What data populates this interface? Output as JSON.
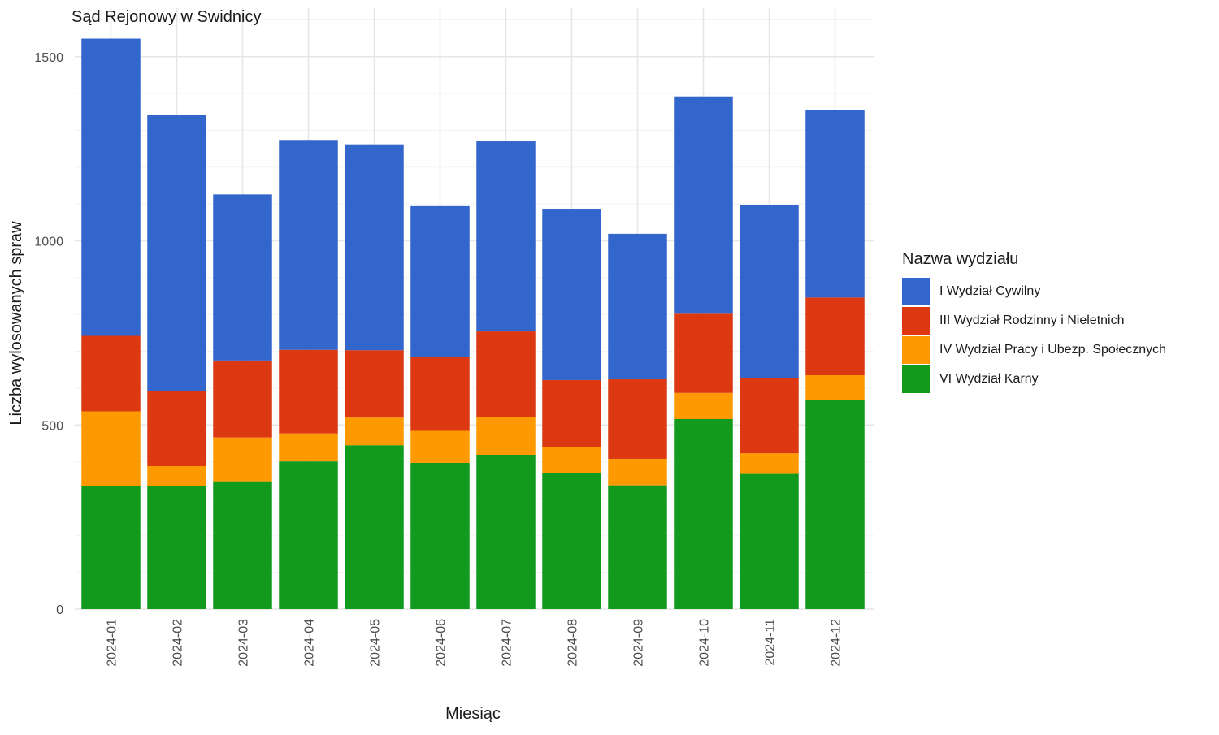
{
  "chart_data": {
    "type": "bar",
    "stacked": true,
    "title": "Sąd Rejonowy w Swidnicy",
    "xlabel": "Miesiąc",
    "ylabel": "Liczba wylosowanych spraw",
    "ylim": [
      0,
      1600
    ],
    "yticks": [
      "0",
      "500",
      "1000",
      "1500"
    ],
    "grid": true,
    "legend_title": "Nazwa wydziału",
    "legend_position": "right",
    "categories": [
      "2024-01",
      "2024-02",
      "2024-03",
      "2024-04",
      "2024-05",
      "2024-06",
      "2024-07",
      "2024-08",
      "2024-09",
      "2024-10",
      "2024-11",
      "2024-12"
    ],
    "series": [
      {
        "name": "VI Wydział Karny",
        "color": "#129a1c",
        "values": [
          335,
          333,
          347,
          401,
          445,
          397,
          419,
          370,
          336,
          516,
          367,
          567
        ]
      },
      {
        "name": "IV Wydział Pracy i Ubezp. Społecznych",
        "color": "#ff9900",
        "values": [
          202,
          55,
          119,
          76,
          75,
          87,
          102,
          71,
          72,
          71,
          56,
          68
        ]
      },
      {
        "name": "III Wydział Rodzinny i Nieletnich",
        "color": "#dc3912",
        "values": [
          205,
          205,
          209,
          227,
          183,
          201,
          233,
          181,
          216,
          215,
          205,
          211
        ]
      },
      {
        "name": "I Wydział Cywilny",
        "color": "#3366cc",
        "values": [
          807,
          749,
          451,
          570,
          559,
          409,
          516,
          465,
          395,
          590,
          469,
          509
        ]
      }
    ]
  }
}
